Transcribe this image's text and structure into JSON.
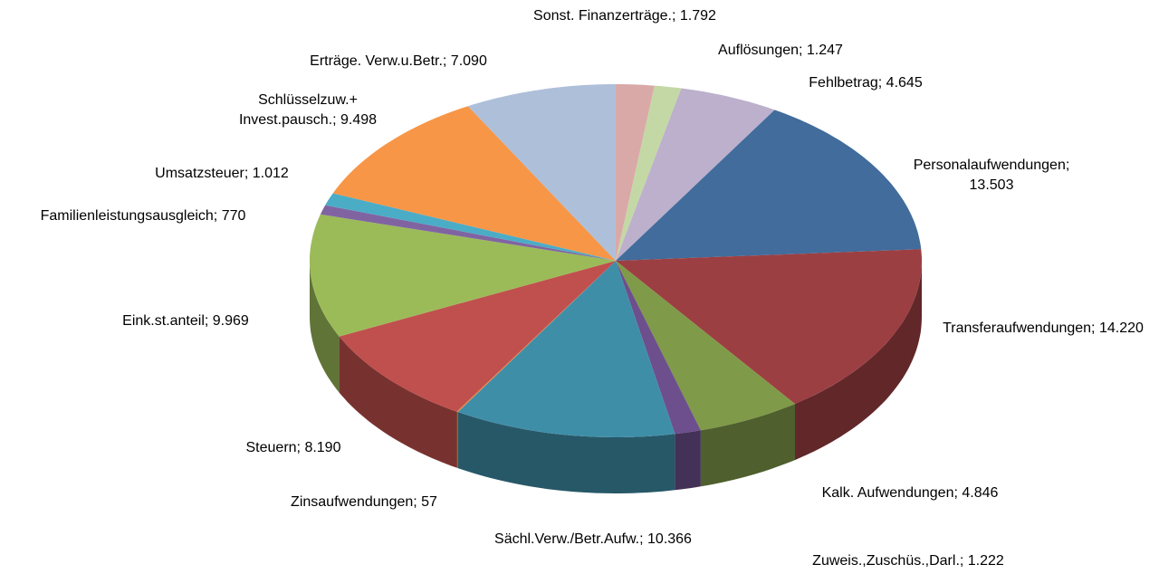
{
  "chart_data": {
    "type": "pie3d",
    "categories": [
      "Sonst. Finanzerträge.;",
      "Auflösungen;",
      "Fehlbetrag;",
      "Personalaufwendungen;",
      "Transferaufwendungen;",
      "Kalk. Aufwendungen;",
      "Zuweis.,Zuschüs.,Darl.;",
      "Sächl.Verw./Betr.Aufw.;",
      "Zinsaufwendungen;",
      "Steuern;",
      "Eink.st.anteil;",
      "Familienleistungsausgleich;",
      "Umsatzsteuer;",
      "Schlüsselzuw.+ Invest.pausch.;",
      "Erträge. Verw.u.Betr.;"
    ],
    "values": [
      1792,
      1247,
      4645,
      13503,
      14220,
      4846,
      1222,
      10366,
      57,
      8190,
      9969,
      770,
      1012,
      9498,
      7090
    ],
    "value_labels": [
      "1.792",
      "1.247",
      "4.645",
      "13.503",
      "14.220",
      "4.846",
      "1.222",
      "10.366",
      "57",
      "8.190",
      "9.969",
      "770",
      "1.012",
      "9.498",
      "7.090"
    ],
    "colors": [
      "#d9a9a8",
      "#c4d8a5",
      "#bcb0cc",
      "#416c9c",
      "#9c3f42",
      "#7f9a48",
      "#6c4f8c",
      "#3f8ea8",
      "#e8893f",
      "#c0504d",
      "#9bbb59",
      "#8064a2",
      "#4bacc6",
      "#f79646",
      "#aebfda"
    ]
  }
}
